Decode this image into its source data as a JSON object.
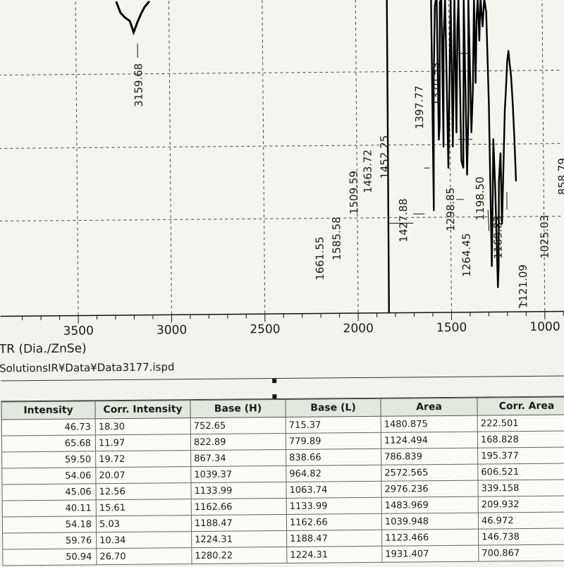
{
  "chart_data": {
    "type": "line",
    "x_ticks": [
      "3500",
      "3000",
      "2500",
      "2000",
      "1500",
      "1000"
    ],
    "xlabel": "TR (Dia./ZnSe)",
    "peak_labels": [
      "3159.68",
      "1661.55",
      "1585.58",
      "1509.59",
      "1463.72",
      "1452.25",
      "1427.88",
      "1397.77",
      "1370.53",
      "1298.85",
      "1264.45",
      "1198.50",
      "1169.83",
      "1121.09",
      "1025.03",
      "858.79"
    ]
  },
  "file_path": "SolutionsIR¥Data¥Data3177.ispd",
  "table": {
    "columns": [
      "Intensity",
      "Corr. Intensity",
      "Base (H)",
      "Base (L)",
      "Area",
      "Corr. Area"
    ],
    "rows": [
      [
        "46.73",
        "18.30",
        "752.65",
        "715.37",
        "1480.875",
        "222.501"
      ],
      [
        "65.68",
        "11.97",
        "822.89",
        "779.89",
        "1124.494",
        "168.828"
      ],
      [
        "59.50",
        "19.72",
        "867.34",
        "838.66",
        "786.839",
        "195.377"
      ],
      [
        "54.06",
        "20.07",
        "1039.37",
        "964.82",
        "2572.565",
        "606.521"
      ],
      [
        "45.06",
        "12.56",
        "1133.99",
        "1063.74",
        "2976.236",
        "339.158"
      ],
      [
        "40.11",
        "15.61",
        "1162.66",
        "1133.99",
        "1483.969",
        "209.932"
      ],
      [
        "54.18",
        "5.03",
        "1188.47",
        "1162.66",
        "1039.948",
        "46.972"
      ],
      [
        "59.76",
        "10.34",
        "1224.31",
        "1188.47",
        "1123.466",
        "146.738"
      ],
      [
        "50.94",
        "26.70",
        "1280.22",
        "1224.31",
        "1931.407",
        "700.867"
      ]
    ]
  }
}
